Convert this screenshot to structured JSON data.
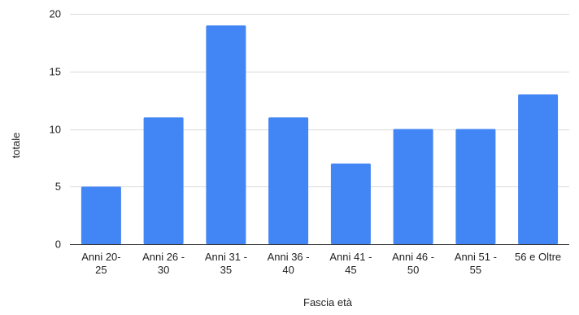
{
  "chart_data": {
    "type": "bar",
    "categories": [
      [
        "Anni 20-",
        "25"
      ],
      [
        "Anni 26 -",
        "30"
      ],
      [
        "Anni 31 -",
        "35"
      ],
      [
        "Anni 36 -",
        "40"
      ],
      [
        "Anni 41 -",
        "45"
      ],
      [
        "Anni 46 -",
        "50"
      ],
      [
        "Anni 51 -",
        "55"
      ],
      [
        "56 e Oltre"
      ]
    ],
    "values": [
      5,
      11,
      19,
      11,
      7,
      10,
      10,
      13
    ],
    "xlabel": "Fascia età",
    "ylabel": "totale",
    "ylim": [
      0,
      20
    ],
    "yticks": [
      0,
      5,
      10,
      15,
      20
    ],
    "grid": true,
    "bar_color": "#4285f4"
  }
}
